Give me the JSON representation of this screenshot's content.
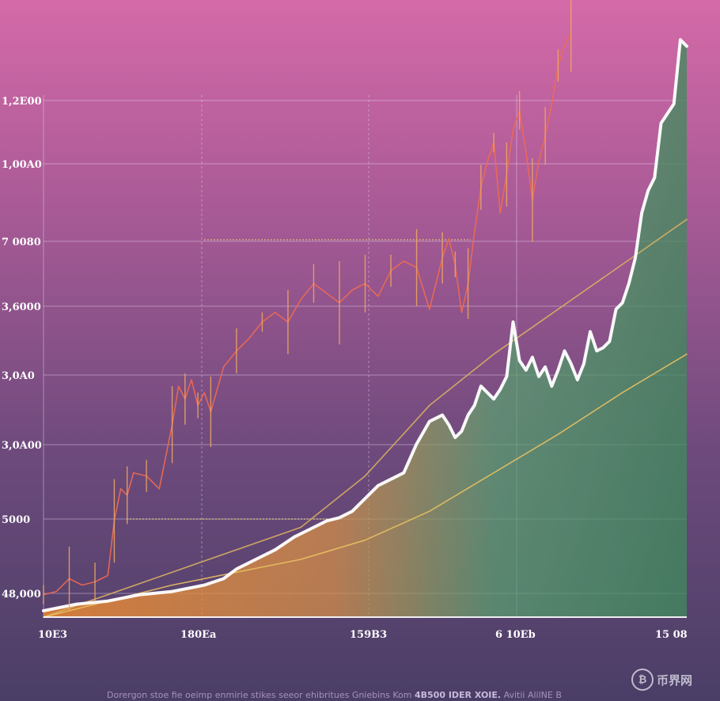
{
  "chart_data": {
    "type": "line",
    "title": "",
    "xlabel": "",
    "ylabel": "",
    "y_ticks": [
      "1,2E00",
      "1,00A0",
      "7 0080",
      "3,6000",
      "3,0A0",
      "3,0A00",
      "5000",
      "48,000"
    ],
    "x_ticks": [
      "10E3",
      "180Ea",
      "159B3",
      "6 10Eb",
      "15 08"
    ],
    "grid": true,
    "series": [
      {
        "color": "#ffffff",
        "x": [
          0,
          5,
          10,
          15,
          20,
          25,
          28,
          30,
          33,
          36,
          39,
          42,
          44,
          46,
          48,
          50,
          52,
          54,
          56,
          58,
          60,
          62,
          63,
          64,
          65,
          66,
          67,
          68,
          70,
          71,
          72,
          73,
          74,
          75,
          76,
          77,
          78,
          79,
          80,
          81,
          82,
          83,
          84,
          85,
          86,
          87,
          88,
          89,
          90,
          91,
          92,
          93,
          94,
          95,
          96,
          97,
          98,
          99,
          100
        ],
        "y": [
          2,
          4,
          5,
          7,
          8,
          10,
          12,
          15,
          18,
          21,
          25,
          28,
          30,
          31,
          33,
          37,
          41,
          43,
          45,
          54,
          61,
          63,
          60,
          56,
          58,
          63,
          66,
          72,
          68,
          71,
          75,
          92,
          80,
          77,
          81,
          75,
          78,
          72,
          77,
          83,
          79,
          74,
          79,
          89,
          83,
          84,
          86,
          96,
          98,
          104,
          112,
          126,
          133,
          137,
          154,
          157,
          160,
          180,
          178
        ]
      },
      {
        "color": "#ef6a50",
        "x": [
          0,
          2,
          4,
          6,
          8,
          10,
          11,
          12,
          13,
          14,
          16,
          18,
          20,
          21,
          22,
          23,
          24,
          25,
          26,
          28,
          30,
          32,
          34,
          36,
          38,
          40,
          42,
          44,
          46,
          48,
          50,
          52,
          54,
          56,
          58,
          60,
          62,
          63,
          64,
          65,
          66,
          67,
          68,
          69,
          70,
          71,
          72,
          73,
          74,
          75,
          76,
          77,
          78,
          79,
          80,
          81,
          82
        ],
        "y": [
          7,
          8,
          12,
          10,
          11,
          13,
          30,
          40,
          38,
          45,
          44,
          40,
          60,
          72,
          68,
          74,
          66,
          70,
          64,
          78,
          83,
          87,
          92,
          95,
          92,
          99,
          104,
          101,
          98,
          102,
          104,
          100,
          108,
          111,
          109,
          96,
          112,
          118,
          110,
          95,
          104,
          120,
          134,
          142,
          148,
          126,
          138,
          152,
          158,
          145,
          130,
          142,
          150,
          160,
          172,
          178,
          182
        ]
      },
      {
        "color": "#e8c060",
        "x": [
          0,
          20,
          40,
          50,
          60,
          70,
          80,
          90,
          100
        ],
        "y": [
          0,
          10,
          18,
          24,
          33,
          45,
          57,
          70,
          82
        ]
      },
      {
        "color": "#d8b060",
        "x": [
          0,
          20,
          40,
          50,
          55,
          60,
          70,
          80,
          90,
          100
        ],
        "y": [
          0,
          14,
          28,
          44,
          55,
          66,
          82,
          96,
          110,
          124
        ]
      }
    ]
  },
  "caption": {
    "text": "Dorergon stoe fie oeimp enmirie stikes seeor ehibritues Gniebins Kom",
    "bold": "4B500 IDER XOIE.",
    "tail": "Avitii AlilNE B"
  },
  "watermark": {
    "glyph": "₿",
    "text": "币界网"
  }
}
